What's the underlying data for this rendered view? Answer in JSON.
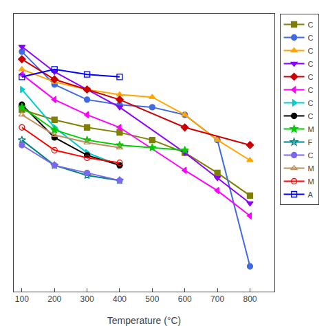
{
  "chart_data": {
    "type": "line",
    "x_label": "Temperature (°C)",
    "xlim": [
      75,
      875
    ],
    "xticks": [
      100,
      200,
      300,
      400,
      500,
      600,
      700,
      800
    ],
    "ylim": [
      0.0,
      1.1
    ],
    "tick_labels": "x",
    "grid": false,
    "legend": "upper right",
    "series": [
      {
        "name": "C",
        "color": "#808000",
        "marker": "square",
        "x": [
          100,
          200,
          300,
          400,
          500,
          600,
          700,
          800
        ],
        "values": [
          0.72,
          0.68,
          0.65,
          0.63,
          0.6,
          0.55,
          0.47,
          0.38
        ]
      },
      {
        "name": "C",
        "color": "#4169e1",
        "marker": "circle",
        "x": [
          100,
          200,
          300,
          400,
          500,
          600,
          700,
          800
        ],
        "values": [
          0.95,
          0.82,
          0.76,
          0.74,
          0.73,
          0.7,
          0.6,
          0.1
        ]
      },
      {
        "name": "C",
        "color": "#ffa500",
        "marker": "triangle-up",
        "x": [
          100,
          200,
          300,
          400,
          500,
          600,
          700,
          800
        ],
        "values": [
          0.88,
          0.83,
          0.8,
          0.78,
          0.77,
          0.7,
          0.6,
          0.52
        ]
      },
      {
        "name": "C",
        "color": "#8b00ff",
        "marker": "triangle-down",
        "x": [
          100,
          200,
          300,
          400,
          600,
          700,
          800
        ],
        "values": [
          0.97,
          0.87,
          0.8,
          0.73,
          0.55,
          0.45,
          0.35
        ]
      },
      {
        "name": "C",
        "color": "#cc0000",
        "marker": "diamond",
        "x": [
          100,
          200,
          300,
          400,
          600,
          800
        ],
        "values": [
          0.92,
          0.84,
          0.8,
          0.76,
          0.65,
          0.58
        ]
      },
      {
        "name": "C",
        "color": "#ff00ff",
        "marker": "triangle-left",
        "x": [
          100,
          200,
          300,
          400,
          600,
          700,
          800
        ],
        "values": [
          0.86,
          0.76,
          0.7,
          0.65,
          0.48,
          0.4,
          0.3
        ]
      },
      {
        "name": "C",
        "color": "#00cccc",
        "marker": "triangle-right",
        "x": [
          100,
          200,
          300,
          400
        ],
        "values": [
          0.8,
          0.65,
          0.55,
          0.5
        ]
      },
      {
        "name": "C",
        "color": "#000000",
        "marker": "circle",
        "x": [
          100,
          200,
          300,
          400
        ],
        "values": [
          0.74,
          0.61,
          0.54,
          0.5
        ]
      },
      {
        "name": "M",
        "color": "#00cc00",
        "marker": "star",
        "x": [
          100,
          200,
          300,
          400,
          500,
          600
        ],
        "values": [
          0.73,
          0.64,
          0.6,
          0.58,
          0.57,
          0.56
        ]
      },
      {
        "name": "F",
        "color": "#008080",
        "marker": "star-open",
        "x": [
          100,
          200,
          300,
          400
        ],
        "values": [
          0.6,
          0.5,
          0.46,
          0.44
        ]
      },
      {
        "name": "C",
        "color": "#7b68ee",
        "marker": "circle",
        "x": [
          100,
          200,
          300,
          400
        ],
        "values": [
          0.58,
          0.5,
          0.47,
          0.44
        ]
      },
      {
        "name": "M",
        "color": "#bc8f5f",
        "marker": "triangle-up-open",
        "x": [
          100,
          200,
          300,
          400
        ],
        "values": [
          0.7,
          0.62,
          0.59,
          0.57
        ]
      },
      {
        "name": "M",
        "color": "#ff0000",
        "marker": "circle-open",
        "x": [
          100,
          200,
          300,
          400
        ],
        "values": [
          0.65,
          0.56,
          0.53,
          0.51
        ]
      },
      {
        "name": "A",
        "color": "#0000ff",
        "marker": "square-open",
        "x": [
          100,
          200,
          300,
          400
        ],
        "values": [
          0.85,
          0.88,
          0.86,
          0.85
        ]
      }
    ]
  }
}
